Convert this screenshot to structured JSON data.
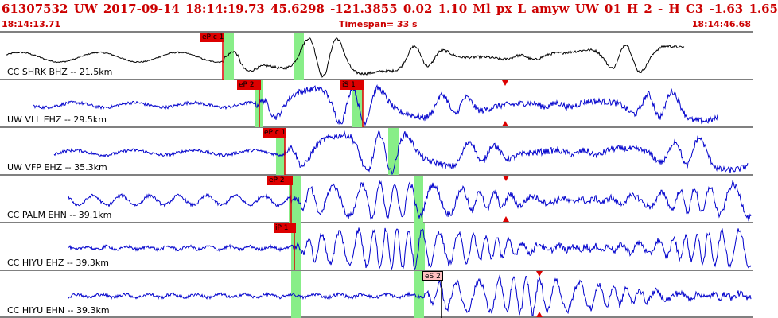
{
  "header": {
    "event_line": "61307532 UW 2017-09-14 18:14:19.73   45.6298 -121.3855   0.02  1.10 Ml  px  L amyw     UW 01  H   2  -  H C3   -1.63  1.65",
    "start_time": "18:14:13.71",
    "timespan": "Timespan=  33 s",
    "end_time": "18:14:46.68"
  },
  "colors": {
    "label_red": "#cc0000",
    "trace_blue": "#0000cc",
    "trace_black": "#000000",
    "window_green": "#88ee88",
    "pick_red": "#dd0000",
    "pick_pink": "#ffc0c0"
  },
  "channels": [
    {
      "label": "CC SHRK BHZ -- 21.5km",
      "color": "trace_black",
      "picks": [
        {
          "text": "eP c 1",
          "style": "red"
        }
      ]
    },
    {
      "label": "UW VLL EHZ -- 29.5km",
      "color": "trace_blue",
      "picks": [
        {
          "text": "eP 2",
          "style": "red"
        },
        {
          "text": "iS 1",
          "style": "red"
        }
      ]
    },
    {
      "label": "UW VFP EHZ -- 35.3km",
      "color": "trace_blue",
      "picks": [
        {
          "text": "eP c 1",
          "style": "red"
        }
      ]
    },
    {
      "label": "CC PALM EHN -- 39.1km",
      "color": "trace_blue",
      "picks": [
        {
          "text": "eP 2",
          "style": "red"
        }
      ]
    },
    {
      "label": "CC HIYU EHZ -- 39.3km",
      "color": "trace_blue",
      "picks": [
        {
          "text": "iP 1",
          "style": "red"
        }
      ]
    },
    {
      "label": "CC HIYU EHN -- 39.3km",
      "color": "trace_blue",
      "picks": [
        {
          "text": "eS 2",
          "style": "pink"
        }
      ]
    }
  ]
}
